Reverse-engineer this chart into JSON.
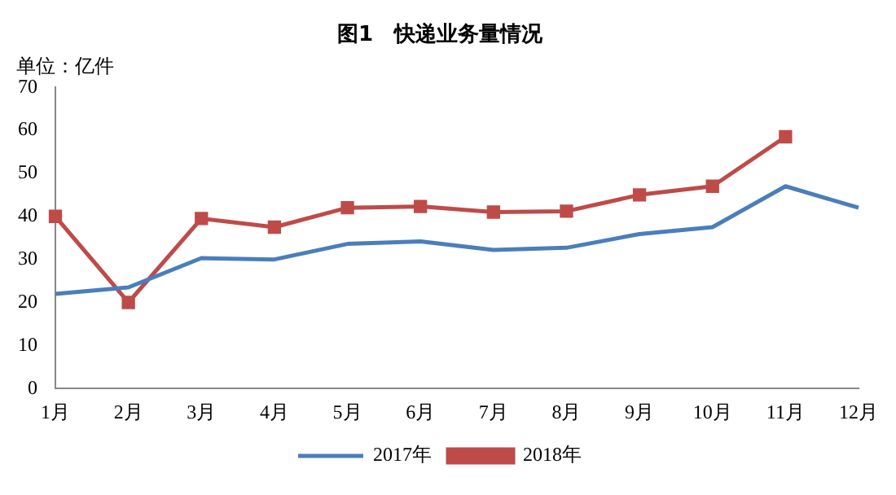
{
  "chart_data": {
    "type": "line",
    "title": "图1　快递业务量情况",
    "ylabel": "单位：亿件",
    "categories": [
      "1月",
      "2月",
      "3月",
      "4月",
      "5月",
      "6月",
      "7月",
      "8月",
      "9月",
      "10月",
      "11月",
      "12月"
    ],
    "series": [
      {
        "name": "2017年",
        "color": "#4a7ebb",
        "marker": "none",
        "values": [
          22,
          23.5,
          30.3,
          30,
          33.6,
          34.2,
          32.2,
          32.7,
          35.9,
          37.5,
          47,
          42
        ]
      },
      {
        "name": "2018年",
        "color": "#be4b48",
        "marker": "square",
        "values": [
          40,
          20,
          39.5,
          37.5,
          42,
          42.3,
          41,
          41.2,
          45,
          47,
          58.5,
          null
        ]
      }
    ],
    "ylim": [
      0,
      70
    ],
    "yticks": [
      0,
      10,
      20,
      30,
      40,
      50,
      60,
      70
    ],
    "grid": false,
    "legend": "bottom"
  }
}
